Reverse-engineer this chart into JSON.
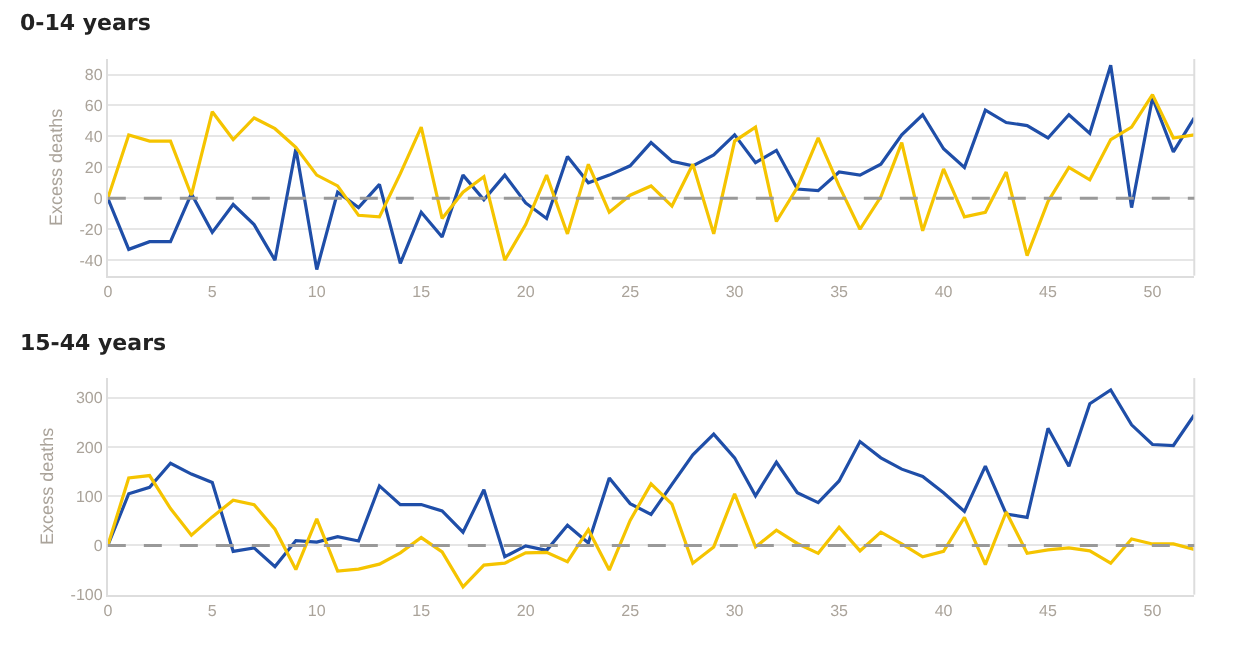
{
  "chart_data": [
    {
      "type": "line",
      "title": "0-14 years",
      "ylabel": "Excess deaths",
      "x": [
        0,
        1,
        2,
        3,
        4,
        5,
        6,
        7,
        8,
        9,
        10,
        11,
        12,
        13,
        14,
        15,
        16,
        17,
        18,
        19,
        20,
        21,
        22,
        23,
        24,
        25,
        26,
        27,
        28,
        29,
        30,
        31,
        32,
        33,
        34,
        35,
        36,
        37,
        38,
        39,
        40,
        41,
        42,
        43,
        44,
        45,
        46,
        47,
        48,
        49,
        50,
        51,
        52
      ],
      "series": [
        {
          "color": "#1f4ea8",
          "values": [
            0,
            -33,
            -28,
            -28,
            3,
            -22,
            -4,
            -17,
            -40,
            32,
            -46,
            4,
            -6,
            9,
            -42,
            -9,
            -25,
            15,
            -1,
            15,
            -3,
            -13,
            27,
            10,
            15,
            21,
            36,
            24,
            21,
            28,
            41,
            23,
            31,
            6,
            5,
            17,
            15,
            22,
            41,
            54,
            32,
            20,
            57,
            49,
            47,
            39,
            54,
            42,
            86,
            -6,
            65,
            30,
            52
          ]
        },
        {
          "color": "#f5c400",
          "values": [
            0,
            41,
            37,
            37,
            2,
            56,
            38,
            52,
            45,
            33,
            15,
            8,
            -11,
            -12,
            16,
            46,
            -13,
            4,
            14,
            -40,
            -17,
            15,
            -23,
            22,
            -9,
            2,
            8,
            -5,
            22,
            -23,
            37,
            46,
            -15,
            7,
            39,
            8,
            -20,
            1,
            36,
            -21,
            19,
            -12,
            -9,
            17,
            -37,
            -2,
            20,
            12,
            38,
            46,
            67,
            39,
            41
          ]
        }
      ],
      "xlim": [
        0,
        52
      ],
      "xticks": [
        0,
        5,
        10,
        15,
        20,
        25,
        30,
        35,
        40,
        45,
        50
      ],
      "ylim": [
        -50,
        90
      ],
      "yticks": [
        -40,
        -20,
        0,
        20,
        40,
        60,
        80
      ],
      "grid": "y",
      "ref_lines": [
        {
          "axis": "y",
          "value": 0,
          "color": "#999999",
          "line_style": "dashed"
        }
      ]
    },
    {
      "type": "line",
      "title": "15-44 years",
      "ylabel": "Excess deaths",
      "x": [
        0,
        1,
        2,
        3,
        4,
        5,
        6,
        7,
        8,
        9,
        10,
        11,
        12,
        13,
        14,
        15,
        16,
        17,
        18,
        19,
        20,
        21,
        22,
        23,
        24,
        25,
        26,
        27,
        28,
        29,
        30,
        31,
        32,
        33,
        34,
        35,
        36,
        37,
        38,
        39,
        40,
        41,
        42,
        43,
        44,
        45,
        46,
        47,
        48,
        49,
        50,
        51,
        52
      ],
      "series": [
        {
          "color": "#1f4ea8",
          "values": [
            0,
            105,
            118,
            167,
            145,
            128,
            -12,
            -5,
            -43,
            10,
            7,
            18,
            9,
            121,
            83,
            83,
            70,
            27,
            113,
            -23,
            -1,
            -10,
            41,
            5,
            137,
            85,
            63,
            124,
            184,
            226,
            178,
            101,
            169,
            107,
            87,
            131,
            211,
            178,
            155,
            140,
            107,
            69,
            161,
            64,
            57,
            238,
            161,
            288,
            316,
            245,
            205,
            203,
            265
          ]
        },
        {
          "color": "#f5c400",
          "values": [
            0,
            137,
            142,
            75,
            21,
            58,
            92,
            83,
            33,
            -49,
            54,
            -52,
            -48,
            -38,
            -15,
            16,
            -13,
            -84,
            -40,
            -36,
            -15,
            -14,
            -33,
            32,
            -50,
            51,
            125,
            84,
            -36,
            -3,
            105,
            -3,
            31,
            4,
            -16,
            37,
            -11,
            27,
            3,
            -23,
            -12,
            57,
            -39,
            68,
            -16,
            -9,
            -5,
            -11,
            -36,
            13,
            3,
            3,
            -8
          ]
        }
      ],
      "xlim": [
        0,
        52
      ],
      "xticks": [
        0,
        5,
        10,
        15,
        20,
        25,
        30,
        35,
        40,
        45,
        50
      ],
      "ylim": [
        -100,
        340
      ],
      "yticks": [
        -100,
        0,
        100,
        200,
        300
      ],
      "grid": "y",
      "ref_lines": [
        {
          "axis": "y",
          "value": 0,
          "color": "#999999",
          "line_style": "dashed"
        }
      ]
    }
  ]
}
